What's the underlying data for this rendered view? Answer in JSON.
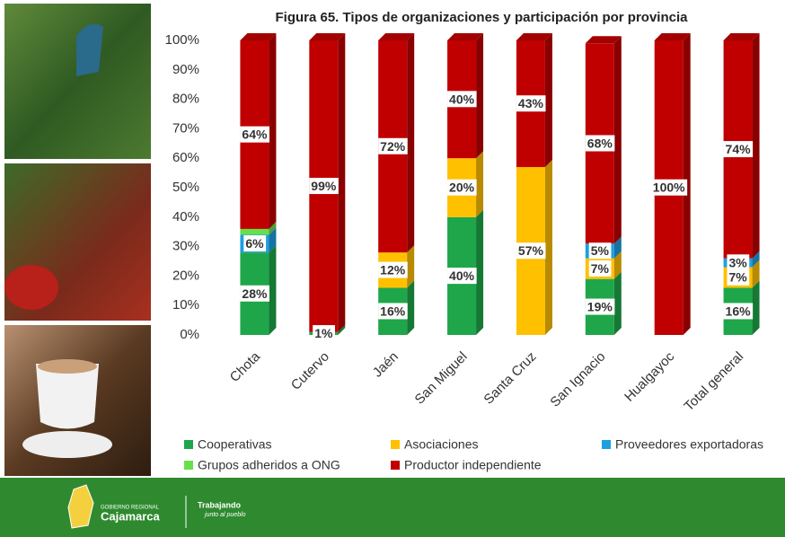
{
  "chart_data": {
    "type": "stacked-bar",
    "title": "Figura 65. Tipos de organizaciones y participación por provincia",
    "categories": [
      "Chota",
      "Cutervo",
      "Jaén",
      "San Miguel",
      "Santa Cruz",
      "San Ignacio",
      "Hualgayoc",
      "Total general"
    ],
    "series": [
      {
        "name": "Cooperativas",
        "color": "#1fa64a",
        "values": [
          28,
          1,
          16,
          40,
          0,
          19,
          0,
          16
        ],
        "value_labels": [
          "28%",
          "1%",
          "16%",
          "40%",
          null,
          "19%",
          null,
          "16%"
        ]
      },
      {
        "name": "Asociaciones",
        "color": "#ffc000",
        "values": [
          0,
          0,
          12,
          20,
          57,
          7,
          0,
          7
        ],
        "value_labels": [
          null,
          null,
          "12%",
          "20%",
          "57%",
          "7%",
          null,
          "7%"
        ]
      },
      {
        "name": "Proveedores exportadoras",
        "color": "#1e9fe0",
        "values": [
          6,
          0,
          0,
          0,
          0,
          5,
          0,
          3
        ],
        "value_labels": [
          "6%",
          null,
          null,
          null,
          null,
          "5%",
          null,
          "3%"
        ]
      },
      {
        "name": "Grupos adheridos a ONG",
        "color": "#66e04a",
        "values": [
          2,
          0,
          0,
          0,
          0,
          0,
          0,
          0
        ],
        "value_labels": [
          null,
          null,
          null,
          null,
          null,
          null,
          null,
          null
        ]
      },
      {
        "name": "Productor independiente",
        "color": "#c00000",
        "values": [
          64,
          99,
          72,
          40,
          43,
          68,
          100,
          74
        ],
        "value_labels": [
          "64%",
          "99%",
          "72%",
          "40%",
          "43%",
          "68%",
          "100%",
          "74%"
        ]
      }
    ],
    "ylim": [
      0,
      100
    ],
    "yticks": [
      {
        "value": 0,
        "label": "0%"
      },
      {
        "value": 10,
        "label": "10%"
      },
      {
        "value": 20,
        "label": "20%"
      },
      {
        "value": 30,
        "label": "30%"
      },
      {
        "value": 40,
        "label": "40%"
      },
      {
        "value": 50,
        "label": "50%"
      },
      {
        "value": 60,
        "label": "60%"
      },
      {
        "value": 70,
        "label": "70%"
      },
      {
        "value": 80,
        "label": "80%"
      },
      {
        "value": 90,
        "label": "90%"
      },
      {
        "value": 100,
        "label": "100%"
      }
    ],
    "grid": false
  },
  "footer": {
    "org_top": "GOBIERNO REGIONAL",
    "org_name": "Cajamarca",
    "slogan_top": "Trabajando",
    "slogan_bottom": "junto al pueblo"
  }
}
